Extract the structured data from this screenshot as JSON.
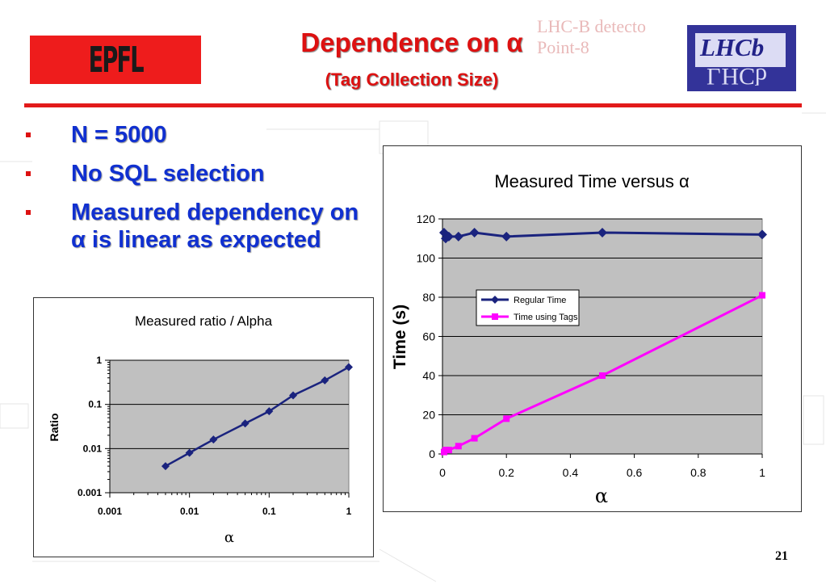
{
  "header": {
    "title": "Dependence on α",
    "subtitle": "(Tag Collection Size)",
    "epfl_logo": "EPFL",
    "lhcb_logo": "LHCb",
    "faint_line1": "LHC-B detecto",
    "faint_line2": "Point-8"
  },
  "bullets": [
    "N = 5000",
    "No SQL selection",
    "Measured dependency on α is linear as expected"
  ],
  "page_number": "21",
  "colors": {
    "accent_red": "#e21a1a",
    "bullet_blue": "#1030d0",
    "series_navy": "#1a237e",
    "series_magenta": "#ff00ff",
    "plot_bg": "#c0c0c0"
  },
  "chart_data": [
    {
      "type": "line",
      "title": "Measured Time versus α",
      "xlabel": "α",
      "ylabel": "Time (s)",
      "xlim": [
        0,
        1
      ],
      "ylim": [
        0,
        120
      ],
      "x_ticks": [
        "0",
        "0.2",
        "0.4",
        "0.6",
        "0.8",
        "1"
      ],
      "y_ticks": [
        "0",
        "20",
        "40",
        "60",
        "80",
        "100",
        "120"
      ],
      "legend_position": "middle-left",
      "series": [
        {
          "name": "Regular Time",
          "color": "#1a237e",
          "marker": "diamond",
          "x": [
            0.005,
            0.01,
            0.02,
            0.05,
            0.1,
            0.2,
            0.5,
            1.0
          ],
          "y": [
            113,
            110,
            111,
            111,
            113,
            111,
            113,
            112
          ]
        },
        {
          "name": "Time using Tags",
          "color": "#ff00ff",
          "marker": "square",
          "x": [
            0.005,
            0.01,
            0.02,
            0.05,
            0.1,
            0.2,
            0.5,
            1.0
          ],
          "y": [
            1,
            2,
            2,
            4,
            8,
            18,
            40,
            81
          ]
        }
      ]
    },
    {
      "type": "line",
      "title": "Measured ratio / Alpha",
      "xlabel": "α",
      "ylabel": "Ratio",
      "xscale": "log",
      "yscale": "log",
      "xlim": [
        0.001,
        1
      ],
      "ylim": [
        0.001,
        1
      ],
      "x_ticks": [
        "0.001",
        "0.01",
        "0.1",
        "1"
      ],
      "y_ticks": [
        "0.001",
        "0.01",
        "0.1",
        "1"
      ],
      "series": [
        {
          "color": "#1a237e",
          "marker": "diamond",
          "x": [
            0.005,
            0.01,
            0.02,
            0.05,
            0.1,
            0.2,
            0.5,
            1.0
          ],
          "y": [
            0.004,
            0.008,
            0.016,
            0.037,
            0.07,
            0.16,
            0.35,
            0.7
          ]
        }
      ]
    }
  ]
}
